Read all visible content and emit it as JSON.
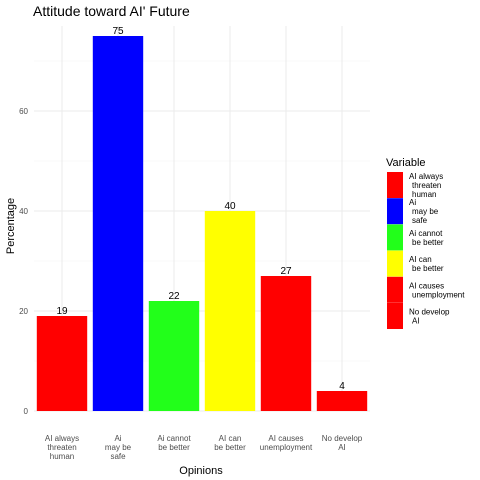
{
  "chart_data": {
    "type": "bar",
    "title": "Attitude toward AI' Future",
    "xlabel": "Opinions",
    "ylabel": "Percentage",
    "ylim": [
      0,
      77
    ],
    "yticks": [
      0,
      20,
      40,
      60
    ],
    "grid": true,
    "legend_position": "right",
    "legend_title": "Variable",
    "categories": [
      "AI always threaten human",
      "Ai may be safe",
      "Ai cannot be better",
      "AI can be better",
      "AI causes unemployment",
      "No develop AI"
    ],
    "category_lines": [
      [
        "AI always",
        "threaten",
        "human"
      ],
      [
        "Ai",
        "may be",
        "safe"
      ],
      [
        "Ai cannot",
        "be better"
      ],
      [
        "AI can",
        "be better"
      ],
      [
        "AI causes",
        "unemployment"
      ],
      [
        "No develop",
        "AI"
      ]
    ],
    "values": [
      19,
      75,
      22,
      40,
      27,
      4
    ],
    "colors": [
      "#ff0000",
      "#0000ff",
      "#22ff1a",
      "#ffff00",
      "#ff0000",
      "#ff0000"
    ],
    "legend_entries": [
      {
        "lines": [
          "AI always",
          "threaten",
          "human"
        ],
        "color": "#ff0000"
      },
      {
        "lines": [
          "Ai",
          "may be",
          "safe"
        ],
        "color": "#0000ff"
      },
      {
        "lines": [
          "Ai cannot",
          "be better"
        ],
        "color": "#22ff1a"
      },
      {
        "lines": [
          "AI can",
          "be better"
        ],
        "color": "#ffff00"
      },
      {
        "lines": [
          "AI causes",
          "unemployment"
        ],
        "color": "#ff0000"
      },
      {
        "lines": [
          "No develop",
          "AI"
        ],
        "color": "#ff0000"
      }
    ]
  }
}
